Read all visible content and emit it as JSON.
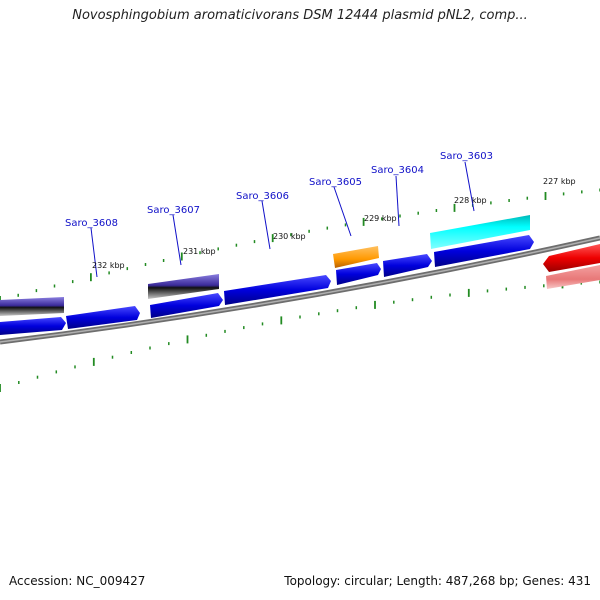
{
  "title": "Novosphingobium aromaticivorans DSM 12444 plasmid pNL2, comp...",
  "footer": {
    "accession": "Accession: NC_009427",
    "summary": "Topology: circular; Length: 487,268 bp; Genes: 431"
  },
  "gene_labels": [
    "Saro_3608",
    "Saro_3607",
    "Saro_3606",
    "Saro_3605",
    "Saro_3604",
    "Saro_3603"
  ],
  "kbp_labels": [
    "232 kbp",
    "231 kbp",
    "230 kbp",
    "229 kbp",
    "228 kbp",
    "227 kbp"
  ],
  "colors": {
    "cds_blue": "#0000dd",
    "slate": "#6a5acd",
    "orange": "#ff9900",
    "cyan": "#00ffff",
    "red": "#ee0000",
    "pink": "#f08080",
    "backbone": "#888888",
    "tick": "#228b22",
    "label": "#1010c8"
  }
}
